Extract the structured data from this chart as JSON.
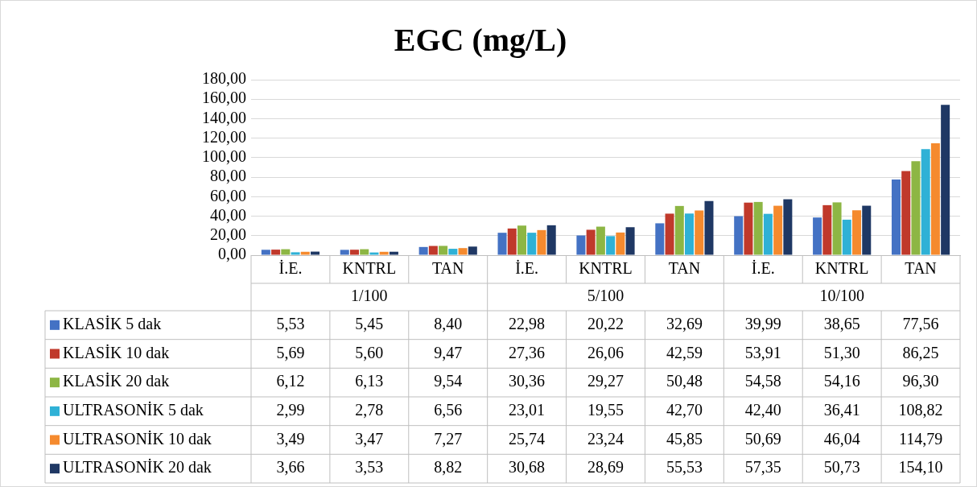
{
  "chart_data": {
    "type": "bar",
    "title": "EGC (mg/L)",
    "categories": [
      "İ.E.",
      "KNTRL",
      "TAN",
      "İ.E.",
      "KNTRL",
      "TAN",
      "İ.E.",
      "KNTRL",
      "TAN"
    ],
    "annotations": [
      "1/100",
      "5/100",
      "10/100"
    ],
    "ylim": [
      0,
      180
    ],
    "yticks": [
      {
        "value": 0,
        "label": "0,00"
      },
      {
        "value": 20,
        "label": "20,00"
      },
      {
        "value": 40,
        "label": "40,00"
      },
      {
        "value": 60,
        "label": "60,00"
      },
      {
        "value": 80,
        "label": "80,00"
      },
      {
        "value": 100,
        "label": "100,00"
      },
      {
        "value": 120,
        "label": "120,00"
      },
      {
        "value": 140,
        "label": "140,00"
      },
      {
        "value": 160,
        "label": "160,00"
      },
      {
        "value": 180,
        "label": "180,00"
      }
    ],
    "grid": "y",
    "legend": "bottom left",
    "series": [
      {
        "name": "KLASİK 5 dak",
        "color": "#4472c4",
        "values": [
          5.53,
          5.45,
          8.4,
          22.98,
          20.22,
          32.69,
          39.99,
          38.65,
          77.56
        ],
        "value_labels": [
          "5,53",
          "5,45",
          "8,40",
          "22,98",
          "20,22",
          "32,69",
          "39,99",
          "38,65",
          "77,56"
        ]
      },
      {
        "name": "KLASİK 10 dak",
        "color": "#c0392b",
        "values": [
          5.69,
          5.6,
          9.47,
          27.36,
          26.06,
          42.59,
          53.91,
          51.3,
          86.25
        ],
        "value_labels": [
          "5,69",
          "5,60",
          "9,47",
          "27,36",
          "26,06",
          "42,59",
          "53,91",
          "51,30",
          "86,25"
        ]
      },
      {
        "name": "KLASİK 20 dak",
        "color": "#8db644",
        "values": [
          6.12,
          6.13,
          9.54,
          30.36,
          29.27,
          50.48,
          54.58,
          54.16,
          96.3
        ],
        "value_labels": [
          "6,12",
          "6,13",
          "9,54",
          "30,36",
          "29,27",
          "50,48",
          "54,58",
          "54,16",
          "96,30"
        ]
      },
      {
        "name": "ULTRASONİK 5 dak",
        "color": "#2fb1d6",
        "values": [
          2.99,
          2.78,
          6.56,
          23.01,
          19.55,
          42.7,
          42.4,
          36.41,
          108.82
        ],
        "value_labels": [
          "2,99",
          "2,78",
          "6,56",
          "23,01",
          "19,55",
          "42,70",
          "42,40",
          "36,41",
          "108,82"
        ]
      },
      {
        "name": "ULTRASONİK 10 dak",
        "color": "#f58a2e",
        "values": [
          3.49,
          3.47,
          7.27,
          25.74,
          23.24,
          45.85,
          50.69,
          46.04,
          114.79
        ],
        "value_labels": [
          "3,49",
          "3,47",
          "7,27",
          "25,74",
          "23,24",
          "45,85",
          "50,69",
          "46,04",
          "114,79"
        ]
      },
      {
        "name": "ULTRASONİK 20 dak",
        "color": "#1f3864",
        "values": [
          3.66,
          3.53,
          8.82,
          30.68,
          28.69,
          55.53,
          57.35,
          50.73,
          154.1
        ],
        "value_labels": [
          "3,66",
          "3,53",
          "8,82",
          "30,68",
          "28,69",
          "55,53",
          "57,35",
          "50,73",
          "154,10"
        ]
      }
    ]
  }
}
